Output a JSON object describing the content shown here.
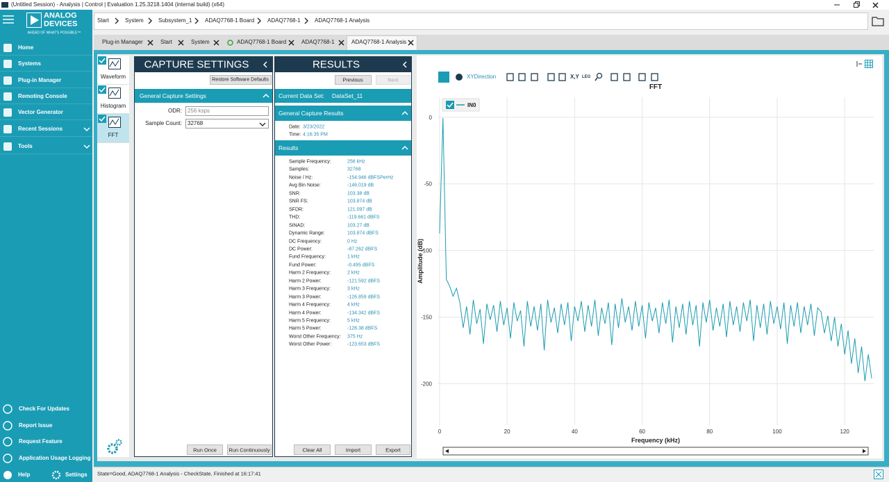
{
  "window": {
    "title": "(Untitled Session) - Analysis | Control | Evaluation 1.25.3218.1404 (internal build) (x64)"
  },
  "sidebar": {
    "brand": [
      "ANALOG",
      "DEVICES"
    ],
    "tagline": "AHEAD OF WHAT'S POSSIBLE™",
    "nav": [
      "Home",
      "Systems",
      "Plug-in Manager",
      "Remoting Console",
      "Vector Generator",
      "Recent Sessions",
      "Tools"
    ],
    "bottom": [
      "Check For Updates",
      "Report Issue",
      "Request Feature",
      "Application Usage Logging"
    ],
    "help": "Help",
    "settings": "Settings"
  },
  "breadcrumb": [
    "Start",
    "System",
    "Subsystem_1",
    "ADAQ7768-1 Board",
    "ADAQ7768-1",
    "ADAQ7768-1 Analysis"
  ],
  "tabs": [
    "Plug-in Manager",
    "Start",
    "System",
    "ADAQ7768-1 Board",
    "ADAQ7768-1",
    "ADAQ7768-1 Analysis"
  ],
  "views": [
    "Waveform",
    "Histogram",
    "FFT"
  ],
  "capture": {
    "title": "CAPTURE SETTINGS",
    "restore": "Restore Software Defaults",
    "section": "General Capture Settings",
    "fields": [
      {
        "label": "ODR:",
        "value": "256 ksps"
      },
      {
        "label": "Sample Count:",
        "value": "32768"
      }
    ],
    "buttons": [
      "Run Once",
      "Run Continuously"
    ]
  },
  "results": {
    "title": "RESULTS",
    "previous": "Previous",
    "next": "Next",
    "dataset_label": "Current Data Set:",
    "dataset": "DataSet_11",
    "general": "General Capture Results",
    "date_label": "Date:",
    "date": "3/23/2022",
    "time_label": "Time:",
    "time": "4:16:35 PM",
    "section": "Results",
    "rows": [
      [
        "Sample Frequency:",
        "256 kHz"
      ],
      [
        "Samples:",
        "32768"
      ],
      [
        "Noise / Hz:",
        "-154.946 dBFSPerHz"
      ],
      [
        "Avg Bin Noise:",
        "-146.019 dB"
      ],
      [
        "SNR:",
        "103.38 dB"
      ],
      [
        "SNR FS:",
        "103.874 dB"
      ],
      [
        "SFDR:",
        "121.097 dB"
      ],
      [
        "THD:",
        "-119.661 dBFS"
      ],
      [
        "SINAD:",
        "103.27 dB"
      ],
      [
        "Dynamic Range:",
        "103.874 dBFS"
      ],
      [
        "DC Frequency:",
        "0 Hz"
      ],
      [
        "DC Power:",
        "-87.262 dBFS"
      ],
      [
        "Fund Frequency:",
        "1 kHz"
      ],
      [
        "Fund Power:",
        "-0.495 dBFS"
      ],
      [
        "Harm 2 Frequency:",
        "2 kHz"
      ],
      [
        "Harm 2 Power:",
        "-121.592 dBFS"
      ],
      [
        "Harm 3 Frequency:",
        "3 kHz"
      ],
      [
        "Harm 3 Power:",
        "-126.859 dBFS"
      ],
      [
        "Harm 4 Frequency:",
        "4 kHz"
      ],
      [
        "Harm 4 Power:",
        "-134.342 dBFS"
      ],
      [
        "Harm 5 Frequency:",
        "5 kHz"
      ],
      [
        "Harm 5 Power:",
        "-128.38 dBFS"
      ],
      [
        "Worst Other Frequency:",
        "375 Hz"
      ],
      [
        "Worst Other Power:",
        "-123.653 dBFS"
      ]
    ],
    "buttons": [
      "Clear All",
      "Import",
      "Export"
    ]
  },
  "toolbar": {
    "direction": "XYDirection",
    "xy": "X,Y",
    "legend": "LEG"
  },
  "chart_data": {
    "type": "line",
    "title": "FFT",
    "x_label": "Frequency (kHz)",
    "y_label": "Amplitude (dB)",
    "xlim": [
      -0.6,
      128.6
    ],
    "ylim": [
      -231,
      15
    ],
    "xticks": [
      0,
      20,
      40,
      60,
      80,
      100,
      120
    ],
    "yticks": [
      0,
      -50,
      -100,
      -150,
      -200
    ],
    "grid": true,
    "legend": "top-left",
    "x": [
      0,
      1,
      2,
      3,
      4,
      5,
      6,
      7,
      8,
      9,
      10,
      11,
      12,
      13,
      14,
      15,
      16,
      17,
      18,
      19,
      20,
      21,
      22,
      23,
      24,
      25,
      26,
      27,
      28,
      29,
      30,
      31,
      32,
      33,
      34,
      35,
      36,
      37,
      38,
      39,
      40,
      41,
      42,
      43,
      44,
      45,
      46,
      47,
      48,
      49,
      50,
      51,
      52,
      53,
      54,
      55,
      56,
      57,
      58,
      59,
      60,
      61,
      62,
      63,
      64,
      65,
      66,
      67,
      68,
      69,
      70,
      71,
      72,
      73,
      74,
      75,
      76,
      77,
      78,
      79,
      80,
      81,
      82,
      83,
      84,
      85,
      86,
      87,
      88,
      89,
      90,
      91,
      92,
      93,
      94,
      95,
      96,
      97,
      98,
      99,
      100,
      101,
      102,
      103,
      104,
      105,
      106,
      107,
      108,
      109,
      110,
      111,
      112,
      113,
      114,
      115,
      116,
      117,
      118,
      119,
      120,
      121,
      122,
      123,
      124,
      125,
      126,
      127,
      128
    ],
    "series": [
      {
        "name": "IN0",
        "color": "#1a9bb0",
        "values": [
          -87.262,
          -0.495,
          -121.592,
          -126.859,
          -134.342,
          -128.38,
          -139,
          -158,
          -142,
          -163,
          -137,
          -155,
          -144,
          -170,
          -140,
          -152,
          -141,
          -161,
          -138,
          -156,
          -143,
          -166,
          -139,
          -153,
          -145,
          -172,
          -138,
          -157,
          -142,
          -160,
          -140,
          -175,
          -137,
          -154,
          -143,
          -162,
          -140,
          -156,
          -139,
          -168,
          -142,
          -153,
          -138,
          -161,
          -141,
          -157,
          -137,
          -164,
          -143,
          -155,
          -139,
          -171,
          -140,
          -158,
          -136,
          -154,
          -142,
          -160,
          -138,
          -157,
          -141,
          -166,
          -139,
          -153,
          -143,
          -162,
          -139,
          -155,
          -137,
          -169,
          -142,
          -158,
          -140,
          -163,
          -138,
          -156,
          -141,
          -172,
          -139,
          -154,
          -137,
          -160,
          -143,
          -157,
          -140,
          -165,
          -138,
          -156,
          -142,
          -161,
          -139,
          -153,
          -137,
          -168,
          -141,
          -158,
          -140,
          -163,
          -138,
          -155,
          -142,
          -159,
          -139,
          -170,
          -141,
          -157,
          -139,
          -162,
          -142,
          -156,
          -140,
          -164,
          -143,
          -146,
          -162,
          -149,
          -168,
          -150,
          -172,
          -155,
          -178,
          -160,
          -185,
          -166,
          -192,
          -172,
          -198,
          -178,
          -196
        ]
      }
    ]
  },
  "status": "State=Good, ADAQ7768-1 Analysis - CheckState, Finished at 16:17:41"
}
